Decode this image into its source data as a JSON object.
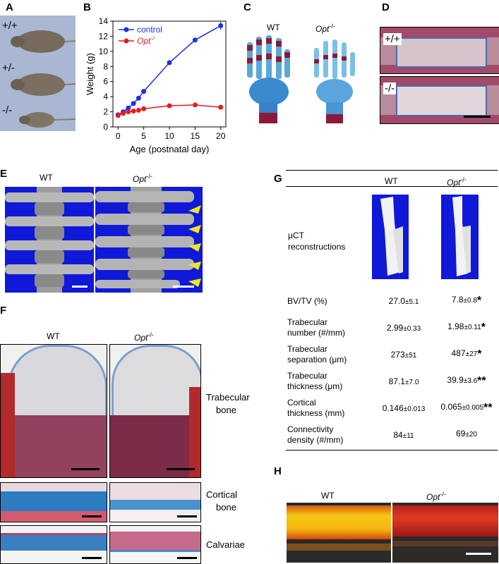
{
  "panels": {
    "A": {
      "label": "A",
      "genotypes": [
        "+/+",
        "+/-",
        "-/-"
      ]
    },
    "B": {
      "label": "B"
    },
    "C": {
      "label": "C",
      "wt": "WT",
      "ko": "Opt",
      "ko_sup": "-/-"
    },
    "D": {
      "label": "D",
      "top": "+/+",
      "bottom": "-/-"
    },
    "E": {
      "label": "E",
      "wt": "WT",
      "ko": "Opt",
      "ko_sup": "-/-"
    },
    "F": {
      "label": "F",
      "wt": "WT",
      "ko": "Opt",
      "ko_sup": "-/-",
      "rows": [
        "Trabecular bone",
        "Cortical bone",
        "Calvariae"
      ],
      "row1a": "Trabecular",
      "row1b": "bone",
      "row2a": "Cortical",
      "row2b": "bone",
      "row3": "Calvariae"
    },
    "G": {
      "label": "G",
      "wt": "WT",
      "ko": "Opt",
      "ko_sup": "-/-",
      "recon_1": "μCT",
      "recon_2": "reconstructions",
      "rows": [
        {
          "l1": "BV/TV (%)",
          "l2": "",
          "wt": "27.0",
          "wt_sd": "±5.1",
          "ko": "7.8",
          "ko_sd": "±0.8",
          "sig": "*"
        },
        {
          "l1": "Trabecular",
          "l2": "number (#/mm)",
          "wt": "2.99",
          "wt_sd": "±0.33",
          "ko": "1.98",
          "ko_sd": "±0.11",
          "sig": "*"
        },
        {
          "l1": "Trabecular",
          "l2": "separation (μm)",
          "wt": "273",
          "wt_sd": "±51",
          "ko": "487",
          "ko_sd": "±27",
          "sig": "*"
        },
        {
          "l1": "Trabecular",
          "l2": "thickness (μm)",
          "wt": "87.1",
          "wt_sd": "±7.0",
          "ko": "39.9",
          "ko_sd": "±3.6",
          "sig": "**"
        },
        {
          "l1": "Cortical",
          "l2": "thickness (mm)",
          "wt": "0.146",
          "wt_sd": "±0.013",
          "ko": "0.065",
          "ko_sd": "±0.005",
          "sig": "**"
        },
        {
          "l1": "Connectivity",
          "l2": "density (#/mm)",
          "wt": "84",
          "wt_sd": "±11",
          "ko": "69",
          "ko_sd": "±20",
          "sig": ""
        }
      ]
    },
    "H": {
      "label": "H",
      "wt": "WT",
      "ko": "Opt",
      "ko_sup": "-/-"
    }
  },
  "chart_data": {
    "type": "line",
    "xlabel": "Age (postnatal day)",
    "ylabel": "Weight (g)",
    "xlim": [
      -1,
      21
    ],
    "ylim": [
      0,
      14
    ],
    "xticks": [
      0,
      5,
      10,
      15,
      20
    ],
    "yticks": [
      0,
      2,
      4,
      6,
      8,
      10,
      12,
      14
    ],
    "legend_position": "top-left",
    "series": [
      {
        "name": "control",
        "color": "#1f2fe0",
        "x": [
          0,
          1,
          2,
          3,
          4,
          5,
          10,
          15,
          20
        ],
        "y": [
          1.6,
          2.0,
          2.5,
          3.1,
          3.8,
          4.7,
          8.5,
          11.5,
          13.4
        ]
      },
      {
        "name": "Opt",
        "name_sup": "-/-",
        "color": "#e0201e",
        "x": [
          0,
          1,
          2,
          3,
          4,
          5,
          10,
          15,
          20
        ],
        "y": [
          1.5,
          1.8,
          2.0,
          2.1,
          2.2,
          2.4,
          2.8,
          2.9,
          2.6
        ]
      }
    ]
  }
}
